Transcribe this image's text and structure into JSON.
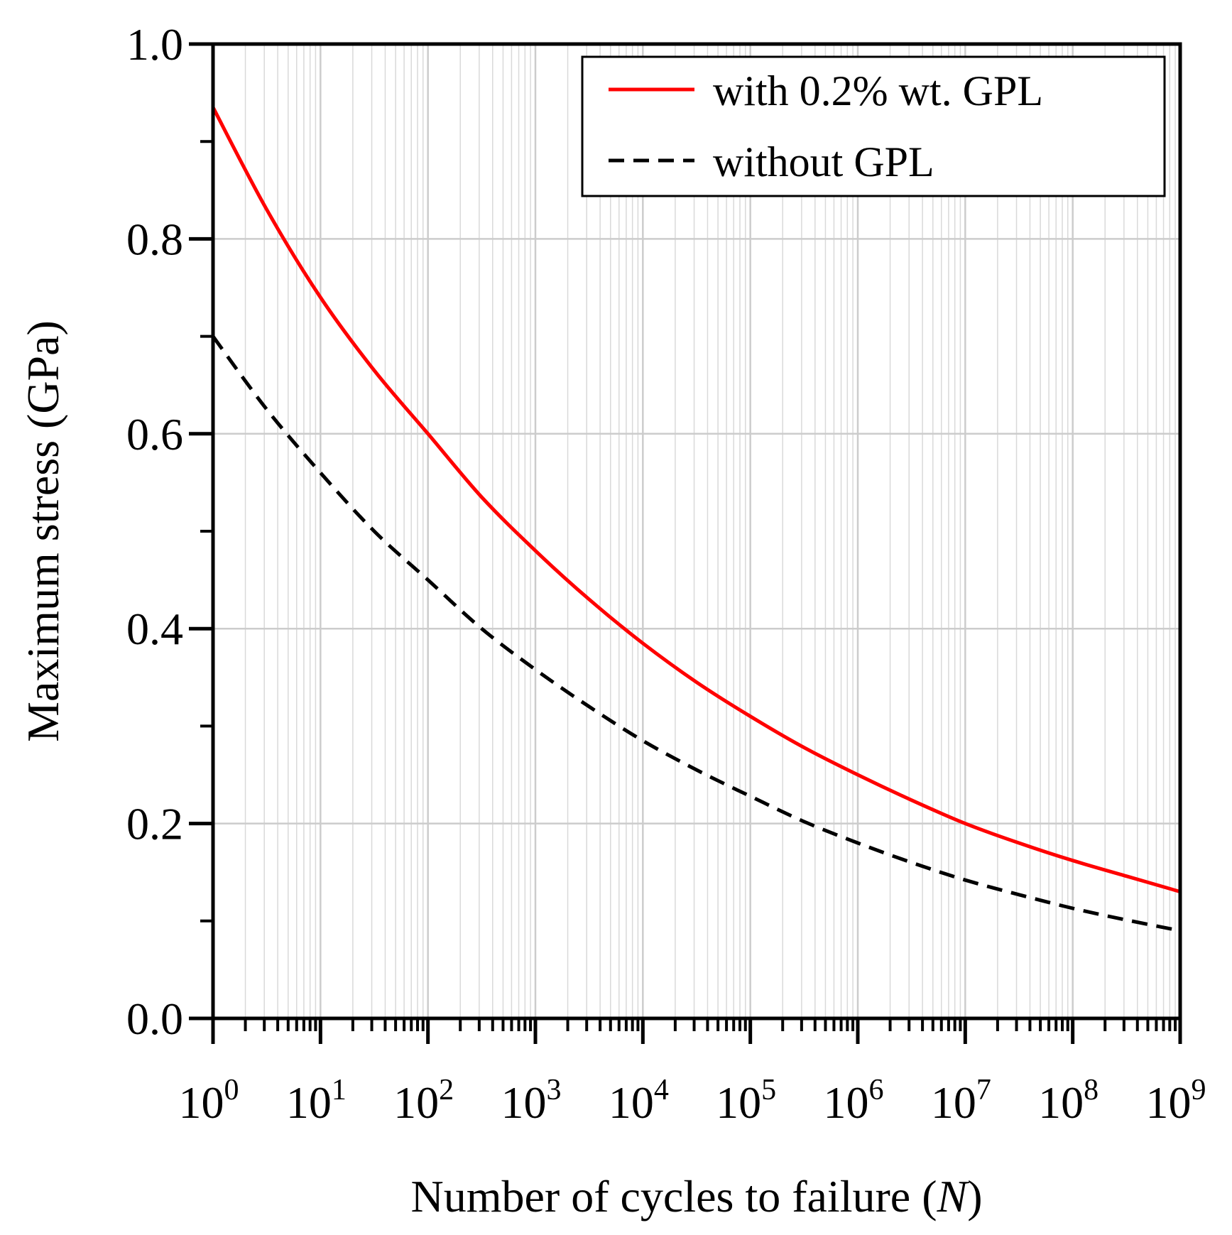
{
  "chart_data": {
    "type": "line",
    "title": "",
    "xlabel": "Number of cycles to failure",
    "xlabel_symbol": "N",
    "ylabel": "Maximum stress (GPa)",
    "xscale": "log",
    "x_exponent_range": [
      0,
      9
    ],
    "ylim": [
      0.0,
      1.0
    ],
    "grid": true,
    "legend_position": "top-right",
    "x_tick_base": "10",
    "x_tick_exponents": [
      "0",
      "1",
      "2",
      "3",
      "4",
      "5",
      "6",
      "7",
      "8",
      "9"
    ],
    "y_tick_labels": [
      "0.0",
      "0.2",
      "0.4",
      "0.6",
      "0.8",
      "1.0"
    ],
    "y_tick_values": [
      0.0,
      0.2,
      0.4,
      0.6,
      0.8,
      1.0
    ],
    "series": [
      {
        "name": "with 0.2% wt. GPL",
        "color": "#ff0000",
        "style": "solid",
        "x_exponent": [
          0,
          0.5,
          1,
          1.5,
          2,
          2.5,
          3,
          3.5,
          4,
          4.5,
          5,
          5.5,
          6,
          6.5,
          7,
          7.5,
          8,
          8.5,
          9
        ],
        "values": [
          0.935,
          0.83,
          0.74,
          0.665,
          0.6,
          0.535,
          0.48,
          0.43,
          0.385,
          0.345,
          0.31,
          0.278,
          0.25,
          0.224,
          0.2,
          0.18,
          0.162,
          0.146,
          0.13
        ]
      },
      {
        "name": "without GPL",
        "color": "#000000",
        "style": "dashed",
        "x_exponent": [
          0,
          0.5,
          1,
          1.5,
          2,
          2.5,
          3,
          3.5,
          4,
          4.5,
          5,
          5.5,
          6,
          6.5,
          7,
          7.5,
          8,
          8.5,
          9
        ],
        "values": [
          0.7,
          0.625,
          0.56,
          0.5,
          0.45,
          0.4,
          0.358,
          0.32,
          0.285,
          0.255,
          0.228,
          0.202,
          0.18,
          0.16,
          0.142,
          0.127,
          0.113,
          0.101,
          0.09
        ]
      }
    ]
  }
}
